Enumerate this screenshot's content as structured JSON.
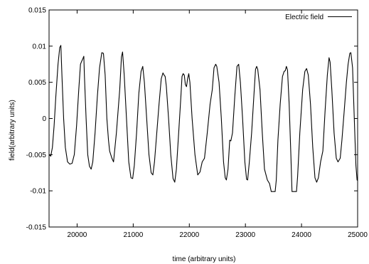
{
  "chart_data": {
    "type": "line",
    "title": "",
    "xlabel": "time (arbitrary units)",
    "ylabel": "field(arbitrary units)",
    "xlim": [
      19500,
      25000
    ],
    "ylim": [
      -0.015,
      0.015
    ],
    "x_ticks": [
      20000,
      21000,
      22000,
      23000,
      24000,
      25000
    ],
    "x_tick_labels": [
      "20000",
      "21000",
      "22000",
      "23000",
      "24000",
      "25000"
    ],
    "y_ticks": [
      -0.015,
      -0.01,
      -0.005,
      0,
      0.005,
      0.01,
      0.015
    ],
    "y_tick_labels": [
      "-0.015",
      "-0.01",
      "-0.005",
      "0",
      "0.005",
      "0.01",
      "0.015"
    ],
    "grid": false,
    "legend_position": "top-right",
    "series": [
      {
        "name": "Electric field",
        "color": "#000000",
        "points": [
          [
            19500,
            -0.005
          ],
          [
            19530,
            -0.0052
          ],
          [
            19560,
            -0.004
          ],
          [
            19590,
            -0.001
          ],
          [
            19620,
            0.003
          ],
          [
            19660,
            0.0075
          ],
          [
            19690,
            0.0098
          ],
          [
            19710,
            0.0101
          ],
          [
            19730,
            0.006
          ],
          [
            19760,
            0.0
          ],
          [
            19790,
            -0.004
          ],
          [
            19830,
            -0.006
          ],
          [
            19870,
            -0.0063
          ],
          [
            19910,
            -0.0062
          ],
          [
            19950,
            -0.005
          ],
          [
            19990,
            -0.001
          ],
          [
            20030,
            0.004
          ],
          [
            20060,
            0.0075
          ],
          [
            20080,
            0.0079
          ],
          [
            20100,
            0.0082
          ],
          [
            20120,
            0.0086
          ],
          [
            20130,
            0.006
          ],
          [
            20160,
            0.0
          ],
          [
            20190,
            -0.005
          ],
          [
            20220,
            -0.0066
          ],
          [
            20250,
            -0.007
          ],
          [
            20280,
            -0.006
          ],
          [
            20320,
            -0.002
          ],
          [
            20360,
            0.003
          ],
          [
            20400,
            0.007
          ],
          [
            20440,
            0.0091
          ],
          [
            20470,
            0.009
          ],
          [
            20500,
            0.006
          ],
          [
            20530,
            0.0
          ],
          [
            20560,
            -0.003
          ],
          [
            20580,
            -0.0045
          ],
          [
            20620,
            -0.0055
          ],
          [
            20650,
            -0.006
          ],
          [
            20700,
            -0.002
          ],
          [
            20760,
            0.004
          ],
          [
            20790,
            0.0085
          ],
          [
            20810,
            0.0092
          ],
          [
            20840,
            0.006
          ],
          [
            20880,
            0.0
          ],
          [
            20920,
            -0.006
          ],
          [
            20960,
            -0.0082
          ],
          [
            20990,
            -0.0083
          ],
          [
            21020,
            -0.0065
          ],
          [
            21060,
            -0.002
          ],
          [
            21100,
            0.0035
          ],
          [
            21140,
            0.0065
          ],
          [
            21170,
            0.0072
          ],
          [
            21200,
            0.005
          ],
          [
            21240,
            0.0
          ],
          [
            21280,
            -0.005
          ],
          [
            21320,
            -0.0075
          ],
          [
            21350,
            -0.0078
          ],
          [
            21380,
            -0.006
          ],
          [
            21420,
            -0.002
          ],
          [
            21460,
            0.002
          ],
          [
            21500,
            0.0055
          ],
          [
            21530,
            0.0063
          ],
          [
            21550,
            0.006
          ],
          [
            21570,
            0.0058
          ],
          [
            21590,
            0.0045
          ],
          [
            21630,
            0.0
          ],
          [
            21670,
            -0.005
          ],
          [
            21710,
            -0.0083
          ],
          [
            21740,
            -0.0088
          ],
          [
            21770,
            -0.007
          ],
          [
            21810,
            -0.002
          ],
          [
            21850,
            0.003
          ],
          [
            21870,
            0.0058
          ],
          [
            21890,
            0.0062
          ],
          [
            21910,
            0.006
          ],
          [
            21930,
            0.0047
          ],
          [
            21950,
            0.0044
          ],
          [
            21970,
            0.0055
          ],
          [
            21990,
            0.0062
          ],
          [
            22010,
            0.005
          ],
          [
            22050,
            0.0
          ],
          [
            22100,
            -0.005
          ],
          [
            22150,
            -0.0078
          ],
          [
            22190,
            -0.0074
          ],
          [
            22230,
            -0.006
          ],
          [
            22270,
            -0.0055
          ],
          [
            22320,
            -0.002
          ],
          [
            22370,
            0.002
          ],
          [
            22410,
            0.004
          ],
          [
            22440,
            0.007
          ],
          [
            22470,
            0.0075
          ],
          [
            22490,
            0.0072
          ],
          [
            22530,
            0.005
          ],
          [
            22570,
            0.0
          ],
          [
            22610,
            -0.006
          ],
          [
            22640,
            -0.0082
          ],
          [
            22660,
            -0.0085
          ],
          [
            22690,
            -0.007
          ],
          [
            22720,
            -0.003
          ],
          [
            22740,
            -0.0031
          ],
          [
            22770,
            -0.002
          ],
          [
            22810,
            0.003
          ],
          [
            22850,
            0.0072
          ],
          [
            22880,
            0.0075
          ],
          [
            22910,
            0.005
          ],
          [
            22950,
            0.0
          ],
          [
            22990,
            -0.006
          ],
          [
            23020,
            -0.0084
          ],
          [
            23040,
            -0.0085
          ],
          [
            23070,
            -0.006
          ],
          [
            23110,
            -0.002
          ],
          [
            23150,
            0.003
          ],
          [
            23180,
            0.0068
          ],
          [
            23200,
            0.0072
          ],
          [
            23220,
            0.0068
          ],
          [
            23260,
            0.004
          ],
          [
            23300,
            -0.002
          ],
          [
            23340,
            -0.007
          ],
          [
            23390,
            -0.0085
          ],
          [
            23430,
            -0.009
          ],
          [
            23460,
            -0.0101
          ],
          [
            23500,
            -0.0101
          ],
          [
            23530,
            -0.0101
          ],
          [
            23550,
            -0.0085
          ],
          [
            23580,
            -0.003
          ],
          [
            23620,
            0.002
          ],
          [
            23660,
            0.0058
          ],
          [
            23690,
            0.0065
          ],
          [
            23710,
            0.0066
          ],
          [
            23730,
            0.0072
          ],
          [
            23750,
            0.0067
          ],
          [
            23780,
            0.002
          ],
          [
            23810,
            -0.005
          ],
          [
            23830,
            -0.0101
          ],
          [
            23870,
            -0.0101
          ],
          [
            23910,
            -0.0101
          ],
          [
            23930,
            -0.008
          ],
          [
            23970,
            -0.002
          ],
          [
            24020,
            0.004
          ],
          [
            24060,
            0.0065
          ],
          [
            24090,
            0.0069
          ],
          [
            24120,
            0.006
          ],
          [
            24160,
            0.002
          ],
          [
            24200,
            -0.004
          ],
          [
            24240,
            -0.0082
          ],
          [
            24270,
            -0.0088
          ],
          [
            24300,
            -0.0082
          ],
          [
            24340,
            -0.006
          ],
          [
            24380,
            -0.0045
          ],
          [
            24420,
            0.001
          ],
          [
            24460,
            0.006
          ],
          [
            24490,
            0.0084
          ],
          [
            24510,
            0.0078
          ],
          [
            24540,
            0.004
          ],
          [
            24580,
            -0.002
          ],
          [
            24620,
            -0.0055
          ],
          [
            24650,
            -0.006
          ],
          [
            24690,
            -0.0055
          ],
          [
            24720,
            -0.003
          ],
          [
            24760,
            0.001
          ],
          [
            24800,
            0.005
          ],
          [
            24830,
            0.0075
          ],
          [
            24860,
            0.009
          ],
          [
            24880,
            0.0091
          ],
          [
            24910,
            0.007
          ],
          [
            24940,
            0.0
          ],
          [
            24970,
            -0.0065
          ],
          [
            24990,
            -0.0085
          ],
          [
            25000,
            -0.0086
          ]
        ]
      }
    ]
  }
}
